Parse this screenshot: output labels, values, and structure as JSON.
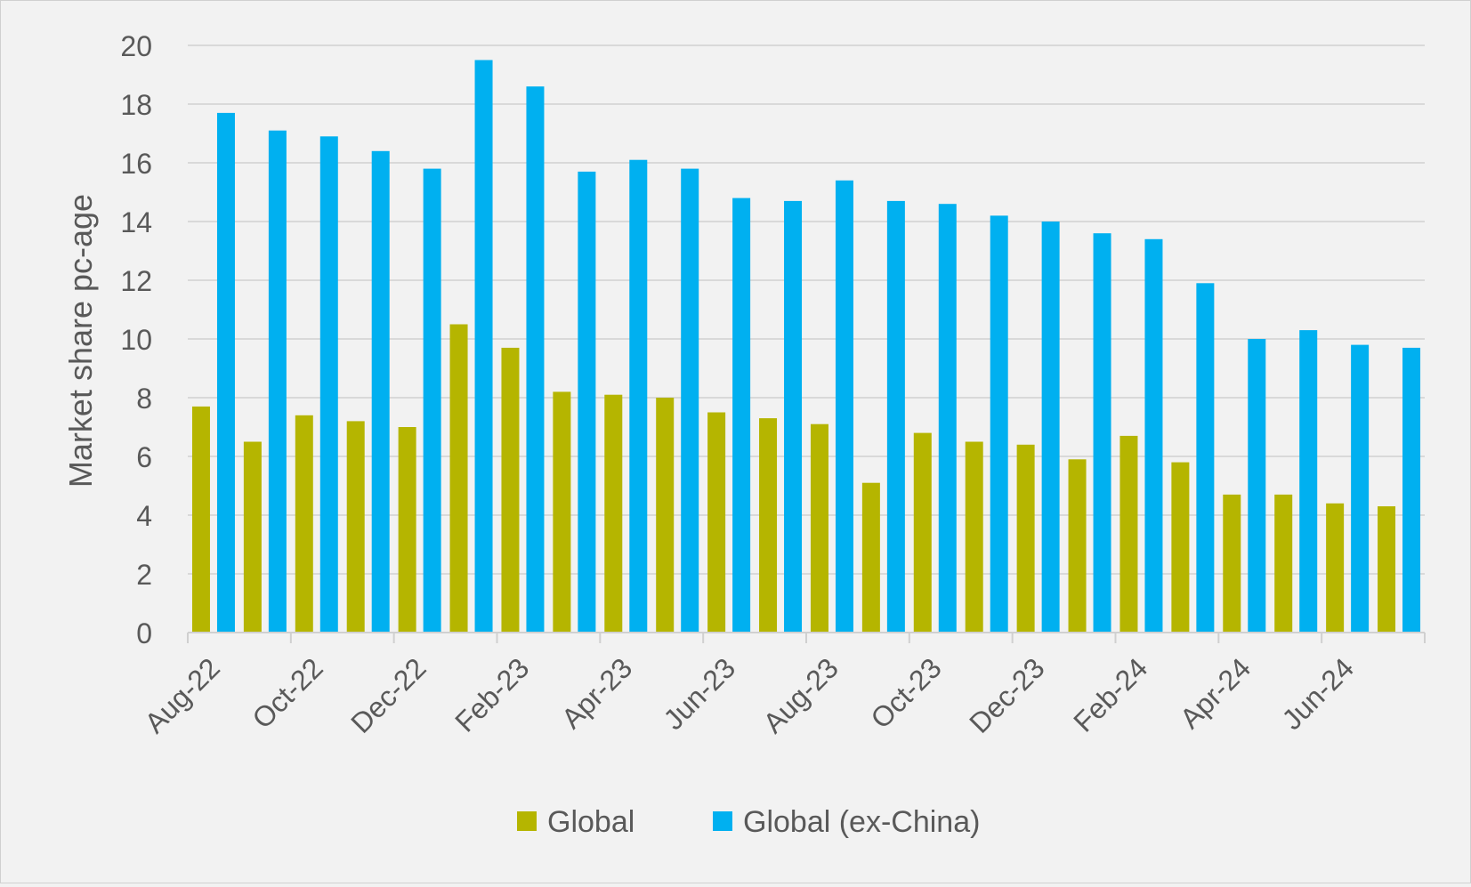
{
  "chart_data": {
    "type": "bar",
    "title": "",
    "xlabel": "",
    "ylabel": "Market share pc-age",
    "ylim": [
      0,
      20
    ],
    "yticks": [
      0,
      2,
      4,
      6,
      8,
      10,
      12,
      14,
      16,
      18,
      20
    ],
    "grid": true,
    "legend_position": "bottom",
    "categories": [
      "Aug-22",
      "Sep-22",
      "Oct-22",
      "Nov-22",
      "Dec-22",
      "Jan-23",
      "Feb-23",
      "Mar-23",
      "Apr-23",
      "May-23",
      "Jun-23",
      "Jul-23",
      "Aug-23",
      "Sep-23",
      "Oct-23",
      "Nov-23",
      "Dec-23",
      "Jan-24",
      "Feb-24",
      "Mar-24",
      "Apr-24",
      "May-24",
      "Jun-24",
      "Jul-24"
    ],
    "xtick_labels": [
      "Aug-22",
      "Oct-22",
      "Dec-22",
      "Feb-23",
      "Apr-23",
      "Jun-23",
      "Aug-23",
      "Oct-23",
      "Dec-23",
      "Feb-24",
      "Apr-24",
      "Jun-24"
    ],
    "series": [
      {
        "name": "Global",
        "color": "#b5b500",
        "values": [
          7.7,
          6.5,
          7.4,
          7.2,
          7.0,
          10.5,
          9.7,
          8.2,
          8.1,
          8.0,
          7.5,
          7.3,
          7.1,
          5.1,
          6.8,
          6.5,
          6.4,
          5.9,
          6.7,
          5.8,
          4.7,
          4.7,
          4.4,
          4.3
        ]
      },
      {
        "name": "Global (ex-China)",
        "color": "#00b0f0",
        "values": [
          17.7,
          17.1,
          16.9,
          16.4,
          15.8,
          19.5,
          18.6,
          15.7,
          16.1,
          15.8,
          14.8,
          14.7,
          15.4,
          14.7,
          14.6,
          14.2,
          14.0,
          13.6,
          13.4,
          11.9,
          10.0,
          10.3,
          9.8,
          9.7
        ]
      }
    ]
  }
}
